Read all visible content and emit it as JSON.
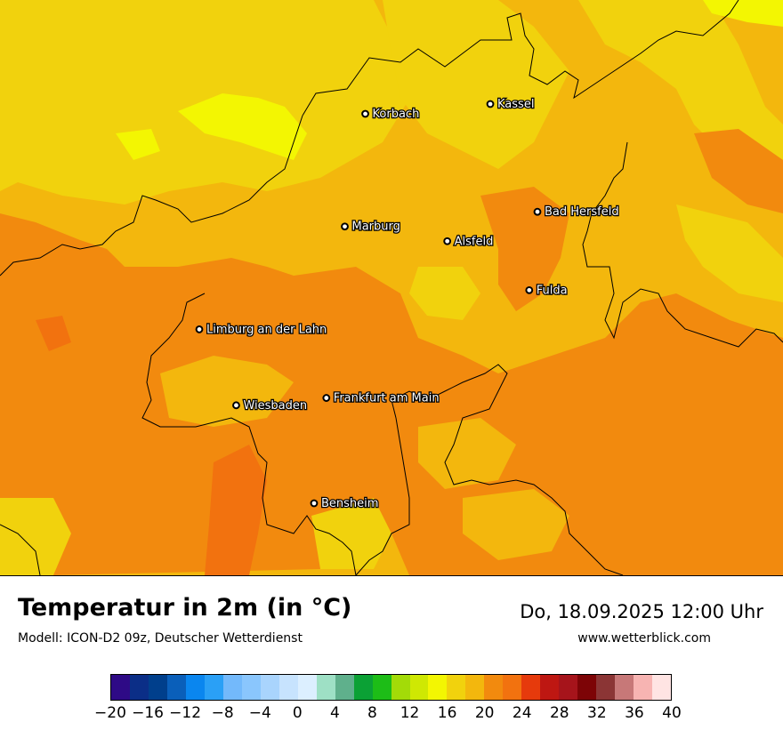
{
  "title": "Temperatur in 2m (in °C)",
  "subtitle": "Modell: ICON-D2 09z, Deutscher Wetterdienst",
  "datetime": "Do, 18.09.2025 12:00 Uhr",
  "website": "www.wetterblick.com",
  "cities": [
    {
      "name": "Kassel",
      "lon": 9.48,
      "lat": 51.31
    },
    {
      "name": "Korbach",
      "lon": 8.87,
      "lat": 51.27
    },
    {
      "name": "Bad Hersfeld",
      "lon": 9.71,
      "lat": 50.87
    },
    {
      "name": "Marburg",
      "lon": 8.77,
      "lat": 50.81
    },
    {
      "name": "Alsfeld",
      "lon": 9.27,
      "lat": 50.75
    },
    {
      "name": "Fulda",
      "lon": 9.67,
      "lat": 50.55
    },
    {
      "name": "Limburg an der Lahn",
      "lon": 8.06,
      "lat": 50.39
    },
    {
      "name": "Frankfurt am Main",
      "lon": 8.68,
      "lat": 50.11
    },
    {
      "name": "Wiesbaden",
      "lon": 8.24,
      "lat": 50.08
    },
    {
      "name": "Bensheim",
      "lon": 8.62,
      "lat": 49.68
    }
  ],
  "colorbar": {
    "min": -20,
    "max": 40,
    "step": 2,
    "tick_labels": [
      "−20",
      "−16",
      "−12",
      "−8",
      "−4",
      "0",
      "4",
      "8",
      "12",
      "16",
      "20",
      "24",
      "28",
      "32",
      "36",
      "40"
    ],
    "colors": [
      "#2e0a86",
      "#0b2e87",
      "#003f8c",
      "#0a5fba",
      "#0a86ef",
      "#2aa0f6",
      "#73b9fb",
      "#8ac6fd",
      "#a9d4fd",
      "#c7e3fe",
      "#dcefff",
      "#9ee0c5",
      "#5fb08c",
      "#0ba135",
      "#1dbd17",
      "#a3db08",
      "#cfe803",
      "#f3f602",
      "#f1d20d",
      "#f3b70d",
      "#f28a0e",
      "#f2720f",
      "#e63a0c",
      "#be1712",
      "#a6141b",
      "#7d0406",
      "#8b3535",
      "#c77878",
      "#f7b4b2",
      "#ffe4e3"
    ]
  }
}
